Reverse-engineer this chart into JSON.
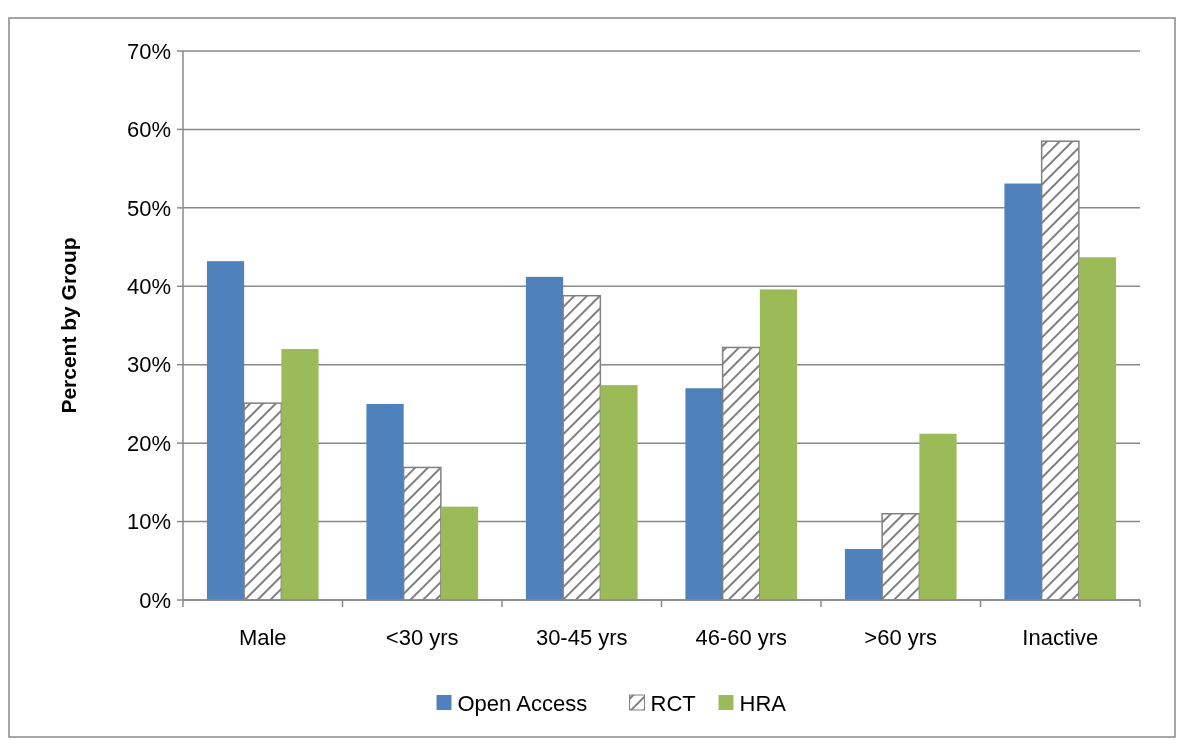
{
  "chart_data": {
    "type": "bar",
    "ylabel": "Percent by Group",
    "categories": [
      "Male",
      "<30 yrs",
      "30-45 yrs",
      "46-60 yrs",
      ">60 yrs",
      "Inactive"
    ],
    "series": [
      {
        "name": "Open Access",
        "color": "#4f81bd",
        "values": [
          43.2,
          25,
          41.2,
          27,
          6.5,
          53.1
        ]
      },
      {
        "name": "RCT",
        "color": "#808080",
        "values": [
          25.1,
          16.9,
          38.8,
          32.2,
          11,
          58.5
        ]
      },
      {
        "name": "HRA",
        "color": "#9bbb59",
        "values": [
          32,
          11.9,
          27.4,
          39.6,
          21.2,
          43.7
        ]
      }
    ],
    "ylim": [
      0,
      70
    ],
    "yticks": [
      {
        "value": 0,
        "label": "0%"
      },
      {
        "value": 10,
        "label": "10%"
      },
      {
        "value": 20,
        "label": "20%"
      },
      {
        "value": 30,
        "label": "30%"
      },
      {
        "value": 40,
        "label": "40%"
      },
      {
        "value": 50,
        "label": "50%"
      },
      {
        "value": 60,
        "label": "60%"
      },
      {
        "value": 70,
        "label": "70%"
      }
    ],
    "grid": "y",
    "legend": "bottom"
  }
}
